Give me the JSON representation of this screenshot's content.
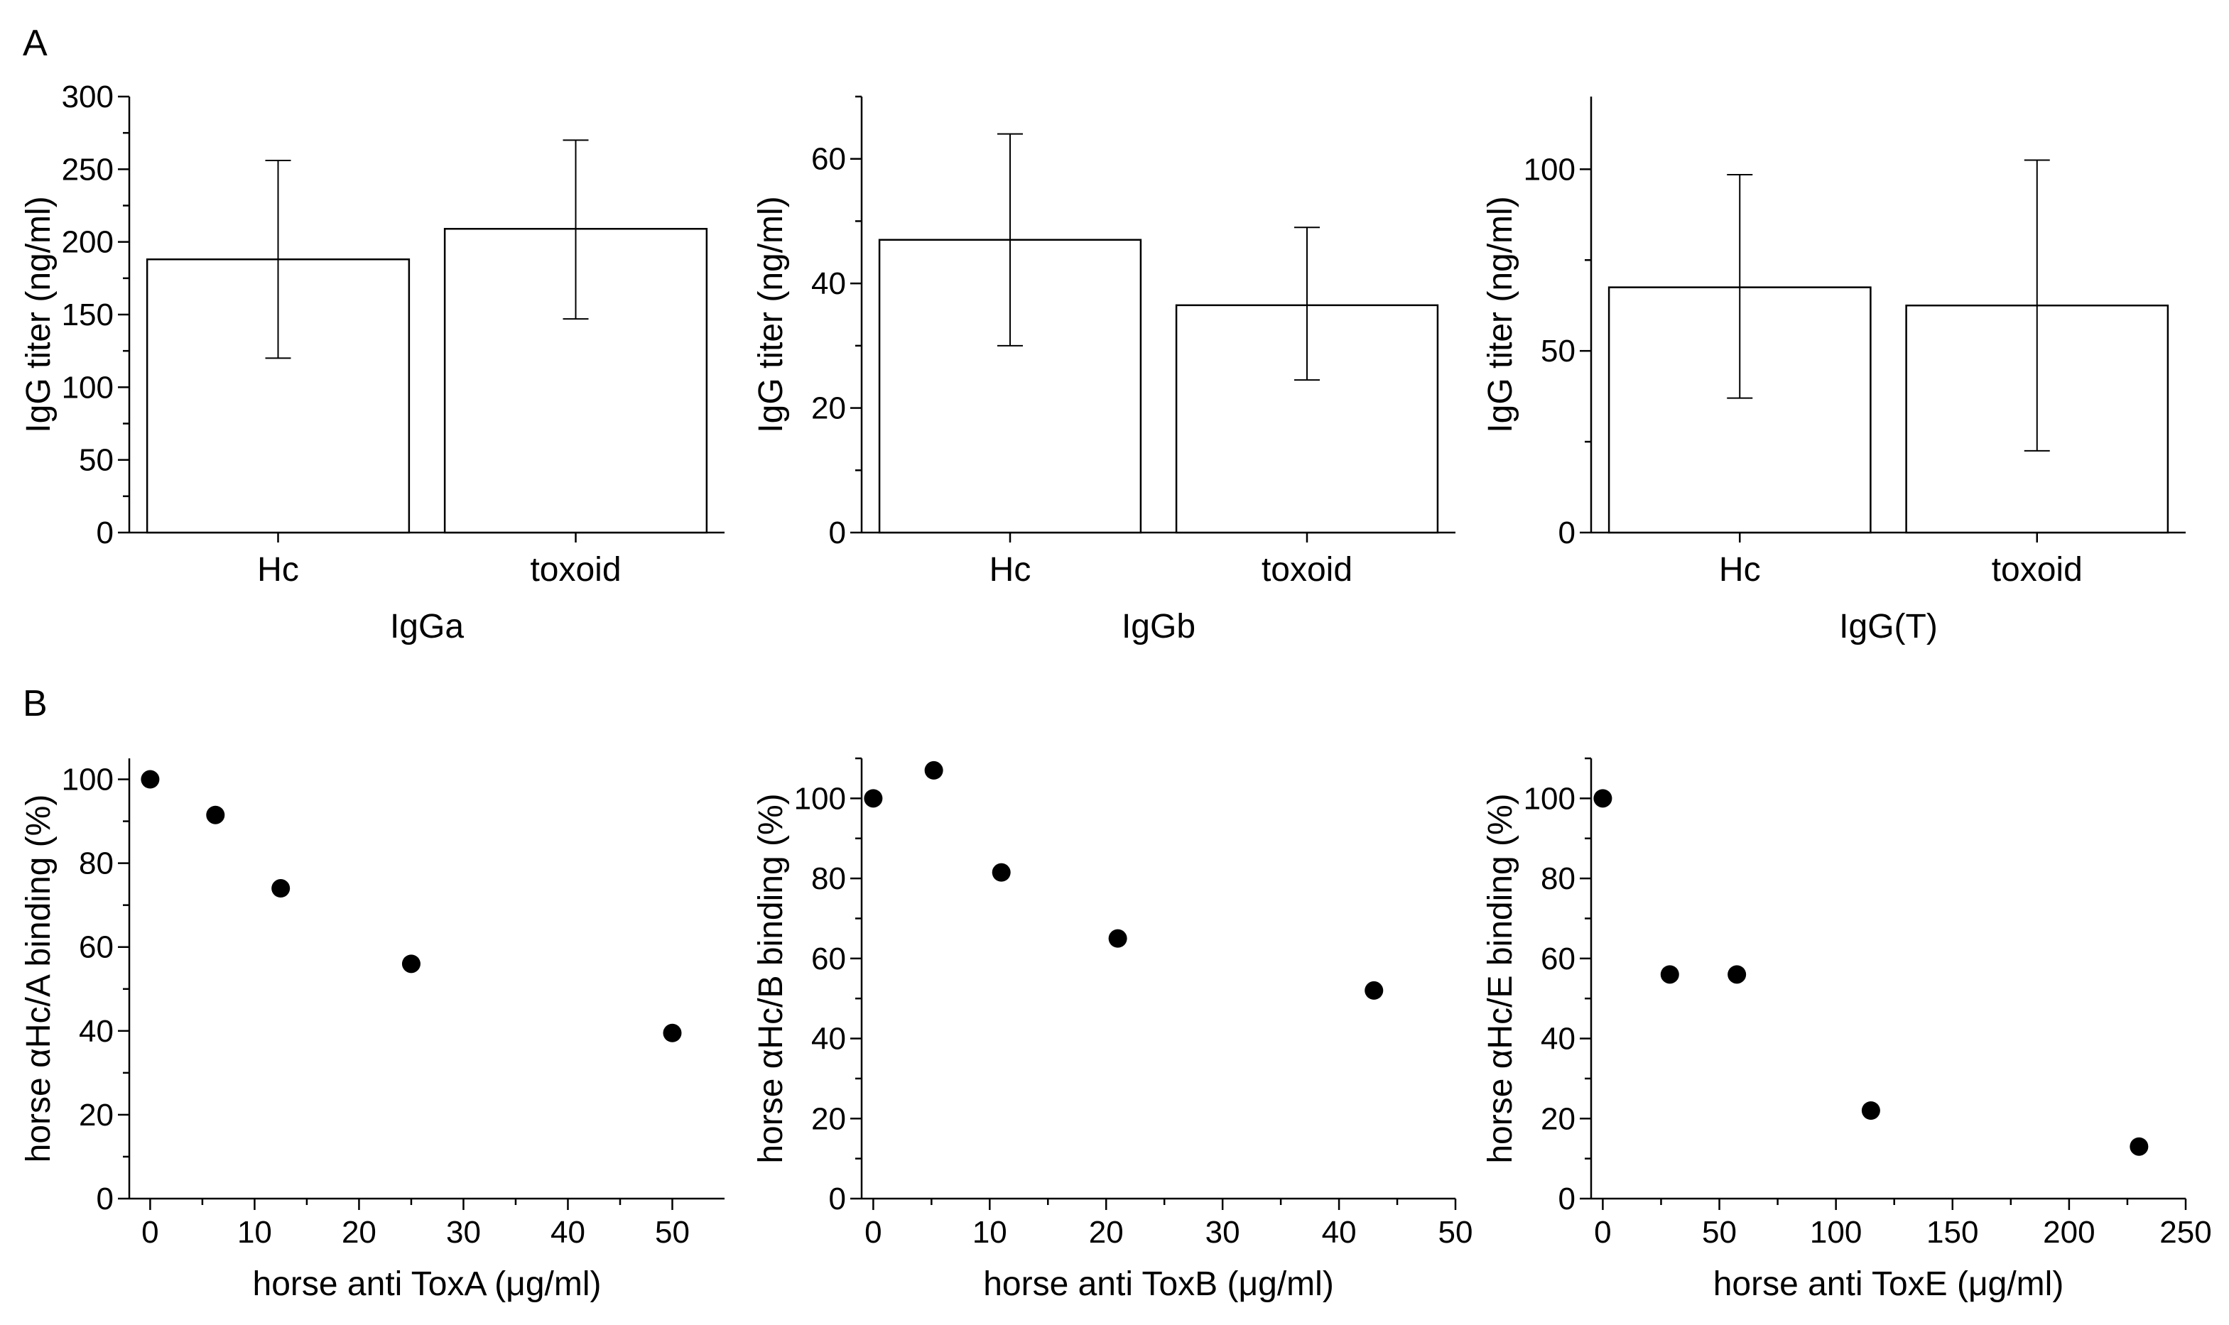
{
  "panel_labels": [
    "A",
    "B"
  ],
  "chart_data": [
    {
      "type": "bar",
      "panel": "A",
      "title": "",
      "group_label": "IgGa",
      "ylabel": "IgG titer (ng/ml)",
      "xlabel": "",
      "categories": [
        "Hc",
        "toxoid"
      ],
      "values": [
        188,
        209
      ],
      "errors_low": [
        120,
        147
      ],
      "errors_high": [
        256,
        270
      ],
      "ylim": [
        0,
        300
      ],
      "yticks": [
        0,
        50,
        100,
        150,
        200,
        250,
        300
      ],
      "ytick_labels": [
        "0",
        "50",
        "100",
        "150",
        "200",
        "250",
        "300"
      ],
      "yminor_step": 25
    },
    {
      "type": "bar",
      "panel": "A",
      "title": "",
      "group_label": "IgGb",
      "ylabel": "IgG titer (ng/ml)",
      "xlabel": "",
      "categories": [
        "Hc",
        "toxoid"
      ],
      "values": [
        47,
        36.5
      ],
      "errors_low": [
        30,
        24.5
      ],
      "errors_high": [
        64,
        49
      ],
      "ylim": [
        0,
        70
      ],
      "yticks": [
        0,
        20,
        40,
        60
      ],
      "ytick_labels": [
        "0",
        "20",
        "40",
        "60"
      ],
      "yminor_step": 10
    },
    {
      "type": "bar",
      "panel": "A",
      "title": "",
      "group_label": "IgG(T)",
      "ylabel": "IgG titer (ng/ml)",
      "xlabel": "",
      "categories": [
        "Hc",
        "toxoid"
      ],
      "values": [
        67.5,
        62.5
      ],
      "errors_low": [
        37,
        22.5
      ],
      "errors_high": [
        98.5,
        102.5
      ],
      "ylim": [
        0,
        120
      ],
      "yticks": [
        0,
        50,
        100
      ],
      "ytick_labels": [
        "0",
        "50",
        "100"
      ],
      "yminor_step": 25
    },
    {
      "type": "scatter",
      "panel": "B",
      "title": "",
      "xlabel": "horse anti ToxA (μg/ml)",
      "ylabel": "horse αHc/A binding (%)",
      "x": [
        0,
        6.25,
        12.5,
        25,
        50
      ],
      "y": [
        100,
        91.5,
        74,
        56,
        39.5
      ],
      "xlim": [
        -2,
        55
      ],
      "ylim": [
        0,
        105
      ],
      "xticks": [
        0,
        10,
        20,
        30,
        40,
        50
      ],
      "xtick_labels": [
        "0",
        "10",
        "20",
        "30",
        "40",
        "50"
      ],
      "yticks": [
        0,
        20,
        40,
        60,
        80,
        100
      ],
      "ytick_labels": [
        "0",
        "20",
        "40",
        "60",
        "80",
        "100"
      ],
      "xminor_step": 5,
      "yminor_step": 10
    },
    {
      "type": "scatter",
      "panel": "B",
      "title": "",
      "xlabel": "horse anti ToxB (μg/ml)",
      "ylabel": "horse αHc/B binding (%)",
      "x": [
        0,
        5.2,
        11,
        21,
        43
      ],
      "y": [
        100,
        107,
        81.5,
        65,
        52
      ],
      "xlim": [
        -1,
        50
      ],
      "ylim": [
        0,
        110
      ],
      "xticks": [
        0,
        10,
        20,
        30,
        40,
        50
      ],
      "xtick_labels": [
        "0",
        "10",
        "20",
        "30",
        "40",
        "50"
      ],
      "yticks": [
        0,
        20,
        40,
        60,
        80,
        100
      ],
      "ytick_labels": [
        "0",
        "20",
        "40",
        "60",
        "80",
        "100"
      ],
      "xminor_step": 5,
      "yminor_step": 10
    },
    {
      "type": "scatter",
      "panel": "B",
      "title": "",
      "xlabel": "horse anti ToxE (μg/ml)",
      "ylabel": "horse αHc/E binding (%)",
      "x": [
        0,
        28.75,
        57.5,
        115,
        230
      ],
      "y": [
        100,
        56,
        56,
        22,
        13
      ],
      "xlim": [
        -5,
        250
      ],
      "ylim": [
        0,
        110
      ],
      "xticks": [
        0,
        50,
        100,
        150,
        200,
        250
      ],
      "xtick_labels": [
        "0",
        "50",
        "100",
        "150",
        "200",
        "250"
      ],
      "yticks": [
        0,
        20,
        40,
        60,
        80,
        100
      ],
      "ytick_labels": [
        "0",
        "20",
        "40",
        "60",
        "80",
        "100"
      ],
      "xminor_step": 25,
      "yminor_step": 10
    }
  ]
}
